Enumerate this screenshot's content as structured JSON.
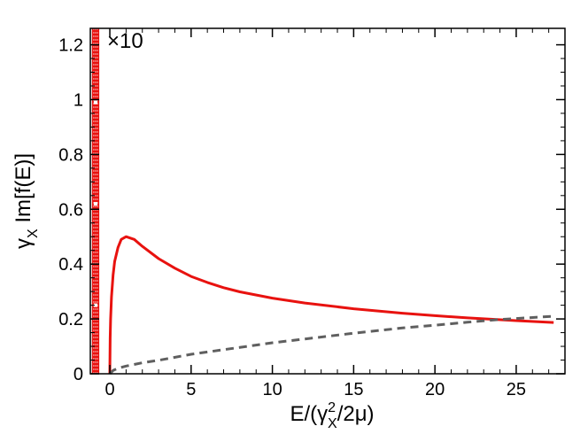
{
  "chart_data": {
    "type": "line",
    "title": "",
    "xlabel": {
      "main": "E/(γ",
      "sup": "2",
      "sub": "X",
      "tail": "/2μ)"
    },
    "ylabel": {
      "pre": "γ",
      "sub": "X",
      "post": " Im[f(E)]"
    },
    "xlim": [
      -1.2,
      28.0
    ],
    "ylim": [
      0,
      1.26
    ],
    "xticks": [
      0,
      5,
      10,
      15,
      20,
      25
    ],
    "yticks": [
      0,
      0.2,
      0.4,
      0.6,
      0.8,
      1,
      1.2
    ],
    "xtick_labels": [
      "0",
      "5",
      "10",
      "15",
      "20",
      "25"
    ],
    "ytick_labels": [
      "0",
      "0.2",
      "0.4",
      "0.6",
      "0.8",
      "1",
      "1.2"
    ],
    "annotation": "×10",
    "grid": false,
    "series": [
      {
        "color": "#e8120f",
        "style": "solid",
        "points": [
          [
            0.0,
            0.0
          ],
          [
            0.02,
            0.13
          ],
          [
            0.05,
            0.2
          ],
          [
            0.1,
            0.28
          ],
          [
            0.2,
            0.36
          ],
          [
            0.3,
            0.41
          ],
          [
            0.5,
            0.46
          ],
          [
            0.7,
            0.49
          ],
          [
            1.0,
            0.5
          ],
          [
            1.5,
            0.49
          ],
          [
            2.0,
            0.465
          ],
          [
            3.0,
            0.42
          ],
          [
            4.0,
            0.385
          ],
          [
            5.0,
            0.355
          ],
          [
            6.0,
            0.333
          ],
          [
            7.0,
            0.314
          ],
          [
            8.0,
            0.299
          ],
          [
            10.0,
            0.276
          ],
          [
            12.0,
            0.258
          ],
          [
            15.0,
            0.237
          ],
          [
            18.0,
            0.221
          ],
          [
            20.0,
            0.212
          ],
          [
            22.0,
            0.204
          ],
          [
            25.0,
            0.194
          ],
          [
            27.3,
            0.187
          ]
        ]
      },
      {
        "color": "#5f5f5f",
        "style": "dashed",
        "points": [
          [
            0.0,
            0.0
          ],
          [
            0.2,
            0.012
          ],
          [
            0.5,
            0.02
          ],
          [
            1.0,
            0.028
          ],
          [
            2.0,
            0.04
          ],
          [
            3.0,
            0.049
          ],
          [
            5.0,
            0.071
          ],
          [
            7.0,
            0.088
          ],
          [
            10.0,
            0.113
          ],
          [
            12.0,
            0.127
          ],
          [
            15.0,
            0.148
          ],
          [
            18.0,
            0.167
          ],
          [
            20.0,
            0.177
          ],
          [
            22.0,
            0.188
          ],
          [
            24.0,
            0.198
          ],
          [
            26.0,
            0.205
          ],
          [
            27.3,
            0.21
          ]
        ]
      }
    ],
    "bar": {
      "color": "#e8120f",
      "x_range": [
        -1.1,
        -0.65
      ],
      "y_range": [
        0,
        1.26
      ],
      "marks_y": [
        0.25,
        0.62,
        0.99
      ]
    }
  }
}
